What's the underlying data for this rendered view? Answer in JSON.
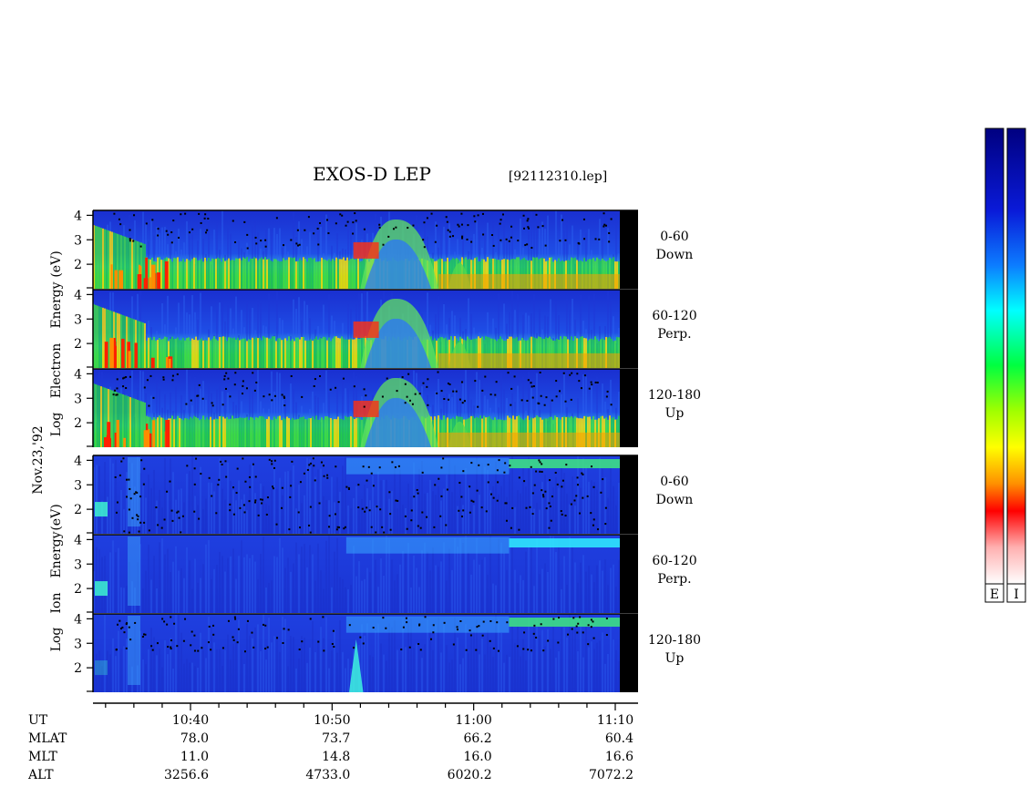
{
  "chart_data": {
    "type": "heatmap",
    "title": "EXOS-D LEP",
    "file_label": "[92112310.lep]",
    "date_label": "Nov.23,'92",
    "electron_ylabel": [
      "Log",
      "Electron",
      "Energy",
      "(eV)"
    ],
    "ion_ylabel": [
      "Log",
      "Ion",
      "Energy",
      "(eV)"
    ],
    "ytick_labels": [
      "4",
      "3",
      "2"
    ],
    "ylim": [
      1,
      4.2
    ],
    "panels": [
      {
        "species": "electron",
        "pitch_angle": "0-60",
        "direction": "Down"
      },
      {
        "species": "electron",
        "pitch_angle": "60-120",
        "direction": "Perp."
      },
      {
        "species": "electron",
        "pitch_angle": "120-180",
        "direction": "Up"
      },
      {
        "species": "ion",
        "pitch_angle": "0-60",
        "direction": "Down"
      },
      {
        "species": "ion",
        "pitch_angle": "60-120",
        "direction": "Perp."
      },
      {
        "species": "ion",
        "pitch_angle": "120-180",
        "direction": "Up"
      }
    ],
    "time_axis": {
      "row_labels": [
        "UT",
        "MLAT",
        "MLT",
        "ALT"
      ],
      "ticks": [
        {
          "ut": "10:40",
          "mlat": "78.0",
          "mlt": "11.0",
          "alt": "3256.6"
        },
        {
          "ut": "10:50",
          "mlat": "73.7",
          "mlt": "14.8",
          "alt": "4733.0"
        },
        {
          "ut": "11:00",
          "mlat": "66.2",
          "mlt": "16.0",
          "alt": "6020.2"
        },
        {
          "ut": "11:10",
          "mlat": "60.4",
          "mlt": "16.6",
          "alt": "7072.2"
        }
      ]
    },
    "colorbars": [
      {
        "label": "E"
      },
      {
        "label": "I"
      }
    ],
    "colorscale": [
      "#ffffff",
      "#ffb0b0",
      "#ff0000",
      "#ff8000",
      "#ffff00",
      "#00ff00",
      "#00ffff",
      "#0040ff",
      "#000080"
    ]
  }
}
